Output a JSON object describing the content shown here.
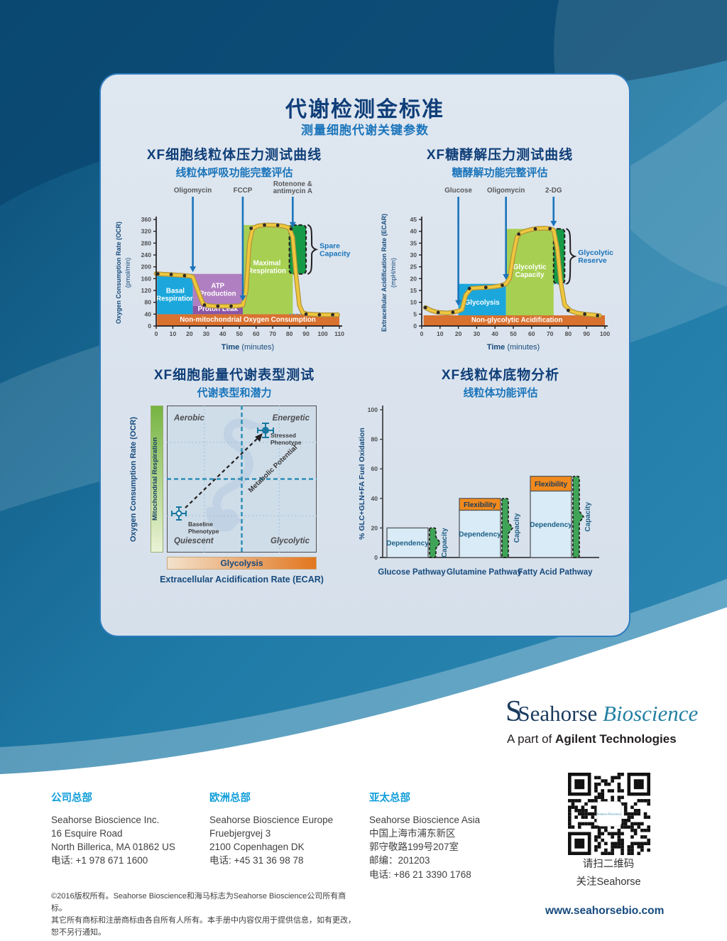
{
  "page": {
    "title": "代谢检测金标准",
    "subtitle": "测量细胞代谢关键参数"
  },
  "chart_data": [
    {
      "type": "line",
      "title": "XF细胞线粒体压力测试曲线",
      "subtitle": "线粒体呼吸功能完整评估",
      "xlabel": "Time (minutes)",
      "ylabel": "Oxygen Consumption Rate (OCR)",
      "ylabel_units": "(pmol/min)",
      "xlim": [
        0,
        110
      ],
      "xstep": 10,
      "ylim": [
        0,
        360
      ],
      "ystep": 40,
      "injections": [
        {
          "label": "Oligomycin",
          "x": 22,
          "arrow_y": 182
        },
        {
          "label": "FCCP",
          "x": 52,
          "arrow_y": 84
        },
        {
          "label": "Rotenone &\nantimycin A",
          "x": 82,
          "arrow_y": 332
        }
      ],
      "regions": [
        {
          "label": "Non-mitochondrial Oxygen Consumption",
          "x0": 0.5,
          "x1": 110,
          "y0": 0,
          "y1": 40,
          "color": "#d9712f",
          "label_x": 55,
          "label_y": 15
        },
        {
          "label": "Basal\nRespiration",
          "x0": 0.5,
          "x1": 22,
          "y0": 40,
          "y1": 176,
          "color": "#1ba7dc",
          "label_x": 11.5,
          "label_y": 112
        },
        {
          "label": "ATP\nProduction",
          "x0": 22,
          "x1": 52,
          "y0": 68,
          "y1": 176,
          "color": "#b07fc1",
          "label_x": 37,
          "label_y": 128
        },
        {
          "label": "Proton Leak",
          "x0": 22,
          "x1": 52,
          "y0": 40,
          "y1": 68,
          "color": "#8a55a6",
          "label_x": 37,
          "label_y": 50
        },
        {
          "label": "Maximal\nRespiration",
          "x0": 52,
          "x1": 82,
          "y0": 40,
          "y1": 341,
          "color": "#a7d052",
          "label_x": 66.5,
          "label_y": 205
        },
        {
          "label": "",
          "x0": 80,
          "x1": 90,
          "y0": 176,
          "y1": 341,
          "color": "#169a47",
          "dashed": true
        }
      ],
      "dotted": [
        {
          "y": 40,
          "x0": 80,
          "x1": 108
        }
      ],
      "brace": {
        "x": 90,
        "top": 341,
        "bottom": 176,
        "label": "Spare\nCapacity"
      },
      "curve": [
        [
          0,
          177
        ],
        [
          4,
          175
        ],
        [
          8,
          174
        ],
        [
          12,
          172
        ],
        [
          16,
          171
        ],
        [
          20,
          169
        ],
        [
          22,
          166
        ],
        [
          25,
          120
        ],
        [
          28,
          76
        ],
        [
          31,
          69
        ],
        [
          35,
          67
        ],
        [
          40,
          67
        ],
        [
          45,
          67
        ],
        [
          49,
          68
        ],
        [
          52,
          70
        ],
        [
          54,
          120
        ],
        [
          56,
          280
        ],
        [
          58,
          330
        ],
        [
          61,
          338
        ],
        [
          65,
          341
        ],
        [
          69,
          341
        ],
        [
          73,
          340
        ],
        [
          77,
          337
        ],
        [
          80,
          330
        ],
        [
          82,
          300
        ],
        [
          84,
          170
        ],
        [
          86,
          70
        ],
        [
          88,
          45
        ],
        [
          91,
          40
        ],
        [
          95,
          39
        ],
        [
          100,
          38
        ],
        [
          105,
          38
        ],
        [
          109,
          38
        ]
      ],
      "dots": [
        [
          1,
          176
        ],
        [
          9,
          174
        ],
        [
          17,
          170
        ],
        [
          29,
          71
        ],
        [
          37,
          67
        ],
        [
          45,
          67
        ],
        [
          57,
          330
        ],
        [
          65,
          341
        ],
        [
          73,
          340
        ],
        [
          81,
          328
        ],
        [
          90,
          40
        ],
        [
          98,
          38
        ],
        [
          106,
          38
        ]
      ]
    },
    {
      "type": "line",
      "title": "XF糖酵解压力测试曲线",
      "subtitle": "糖酵解功能完整评估",
      "xlabel": "Time (minutes)",
      "ylabel": "Extracellular Acidification Rate (ECAR)",
      "ylabel_units": "(mpH/min)",
      "xlim": [
        0,
        100
      ],
      "xstep": 10,
      "ylim": [
        0,
        45
      ],
      "ystep": 5,
      "injections": [
        {
          "label": "Glucose",
          "x": 20,
          "arrow_y": 8.5
        },
        {
          "label": "Oligomycin",
          "x": 46,
          "arrow_y": 19.5
        },
        {
          "label": "2-DG",
          "x": 72,
          "arrow_y": 42
        }
      ],
      "regions": [
        {
          "label": "Non-glycolytic Acidification",
          "x0": 1,
          "x1": 100,
          "y0": 0,
          "y1": 4.5,
          "color": "#d9712f",
          "label_x": 52,
          "label_y": 1.6
        },
        {
          "label": "Glycolysis",
          "x0": 20,
          "x1": 46,
          "y0": 4.5,
          "y1": 17.8,
          "color": "#1ba7dc",
          "label_x": 33,
          "label_y": 9
        },
        {
          "label": "Glycolytic\nCapacity",
          "x0": 46,
          "x1": 72,
          "y0": 4.5,
          "y1": 41,
          "color": "#a7d052",
          "label_x": 59,
          "label_y": 24
        },
        {
          "label": "",
          "x0": 72,
          "x1": 78,
          "y0": 17.8,
          "y1": 41,
          "color": "#169a47",
          "dashed": true
        }
      ],
      "dotted": [
        {
          "y": 17.8,
          "x0": 72,
          "x1": 80
        }
      ],
      "brace": {
        "x": 78,
        "top": 41,
        "bottom": 17.8,
        "label": "Glycolytic\nReserve"
      },
      "curve": [
        [
          2,
          7.8
        ],
        [
          5,
          6.6
        ],
        [
          8,
          5.9
        ],
        [
          11,
          5.6
        ],
        [
          14,
          5.5
        ],
        [
          17,
          5.8
        ],
        [
          20,
          6.3
        ],
        [
          22,
          7
        ],
        [
          24,
          13
        ],
        [
          27,
          15.9
        ],
        [
          31,
          16.1
        ],
        [
          35,
          16.3
        ],
        [
          39,
          16.5
        ],
        [
          43,
          17
        ],
        [
          46,
          17.8
        ],
        [
          48,
          20
        ],
        [
          50,
          30
        ],
        [
          52,
          37.5
        ],
        [
          54,
          39.3
        ],
        [
          57,
          40.2
        ],
        [
          60,
          40.8
        ],
        [
          63,
          41.2
        ],
        [
          67,
          41.3
        ],
        [
          70,
          41.1
        ],
        [
          72,
          40.5
        ],
        [
          74,
          33
        ],
        [
          76,
          18
        ],
        [
          78,
          9
        ],
        [
          81,
          6.5
        ],
        [
          85,
          5.4
        ],
        [
          89,
          5
        ],
        [
          93,
          4.7
        ],
        [
          97,
          4.4
        ]
      ],
      "dots": [
        [
          2,
          7.8
        ],
        [
          9,
          5.7
        ],
        [
          17,
          5.8
        ],
        [
          26,
          15.8
        ],
        [
          35,
          16.3
        ],
        [
          44,
          17.2
        ],
        [
          53,
          38.8
        ],
        [
          62,
          41
        ],
        [
          70,
          41.1
        ],
        [
          80,
          6.6
        ],
        [
          89,
          5
        ],
        [
          96,
          4.4
        ]
      ]
    },
    {
      "type": "scatter",
      "title": "XF细胞能量代谢表型测试",
      "subtitle": "代谢表型和潜力",
      "xlabel": "Extracellular Acidification Rate (ECAR)",
      "ylabel": "Oxygen Consumption Rate (OCR)",
      "x_band_label": "Glycolysis",
      "y_band_label": "Mitochondrial Respiration",
      "quadrants": {
        "top_left": "Aerobic",
        "top_right": "Energetic",
        "bottom_left": "Quiescent",
        "bottom_right": "Glycolytic"
      },
      "points": [
        {
          "lines": [
            "Baseline",
            "Phenotype"
          ]
        },
        {
          "lines": [
            "Stressed",
            "Phenotype"
          ]
        }
      ],
      "arrow_label": "Metabolic Potential"
    },
    {
      "type": "bar",
      "title": "XF线粒体底物分析",
      "subtitle": "线粒体功能评估",
      "ylabel": "% GLC+GLN+FA Fuel Oxidation",
      "ylim": [
        0,
        100
      ],
      "ystep": 20,
      "categories": [
        "Glucose Pathway",
        "Glutamine Pathway",
        "Fatty Acid Pathway"
      ],
      "series": [
        {
          "name": "Dependency",
          "values": [
            20,
            32,
            45
          ]
        },
        {
          "name": "Flexibility",
          "values": [
            0,
            8,
            10
          ]
        },
        {
          "name": "Capacity",
          "values": [
            20,
            40,
            55
          ]
        }
      ],
      "segment_labels": {
        "dependency": "Dependency",
        "flexibility": "Flexibility",
        "capacity": "Capacity"
      }
    }
  ],
  "colors": {
    "accent_blue": "#1b75bb",
    "navy": "#0f3e78",
    "region_blue": "#1ba7dc",
    "region_purple": "#b07fc1",
    "region_dark_purple": "#8a55a6",
    "region_green": "#a7d052",
    "region_dark_green": "#169a47",
    "region_orange": "#d9712f",
    "curve_yellow": "#eec73e",
    "footer_cyan": "#0f9dd9"
  },
  "logo": {
    "brand_1": "Seahorse",
    "brand_2": "Bioscience",
    "tagline_prefix": "A part of ",
    "tagline_bold": "Agilent Technologies"
  },
  "footer": {
    "offices": [
      {
        "heading": "公司总部",
        "lines": [
          "Seahorse Bioscience Inc.",
          "16 Esquire Road",
          "North Billerica, MA 01862 US",
          "电话: +1 978 671 1600"
        ]
      },
      {
        "heading": "欧洲总部",
        "lines": [
          "Seahorse Bioscience Europe",
          "Fruebjergvej 3",
          "2100 Copenhagen DK",
          "电话: +45 31 36 98 78"
        ]
      },
      {
        "heading": "亚太总部",
        "lines": [
          "Seahorse Bioscience Asia",
          "中国上海市浦东新区",
          "郭守敬路199号207室",
          "邮编：201203",
          "电话: +86 21 3390 1768"
        ]
      }
    ],
    "qr_caption_1": "请扫二维码",
    "qr_caption_2": "关注Seahorse",
    "copyright": [
      "©2016版权所有。Seahorse Bioscience和海马标志为Seahorse Bioscience公司所有商标。",
      "其它所有商标和注册商标由各自所有人所有。本手册中内容仅用于提供信息，如有更改，",
      "恕不另行通知。"
    ],
    "website": "www.seahorsebio.com"
  }
}
